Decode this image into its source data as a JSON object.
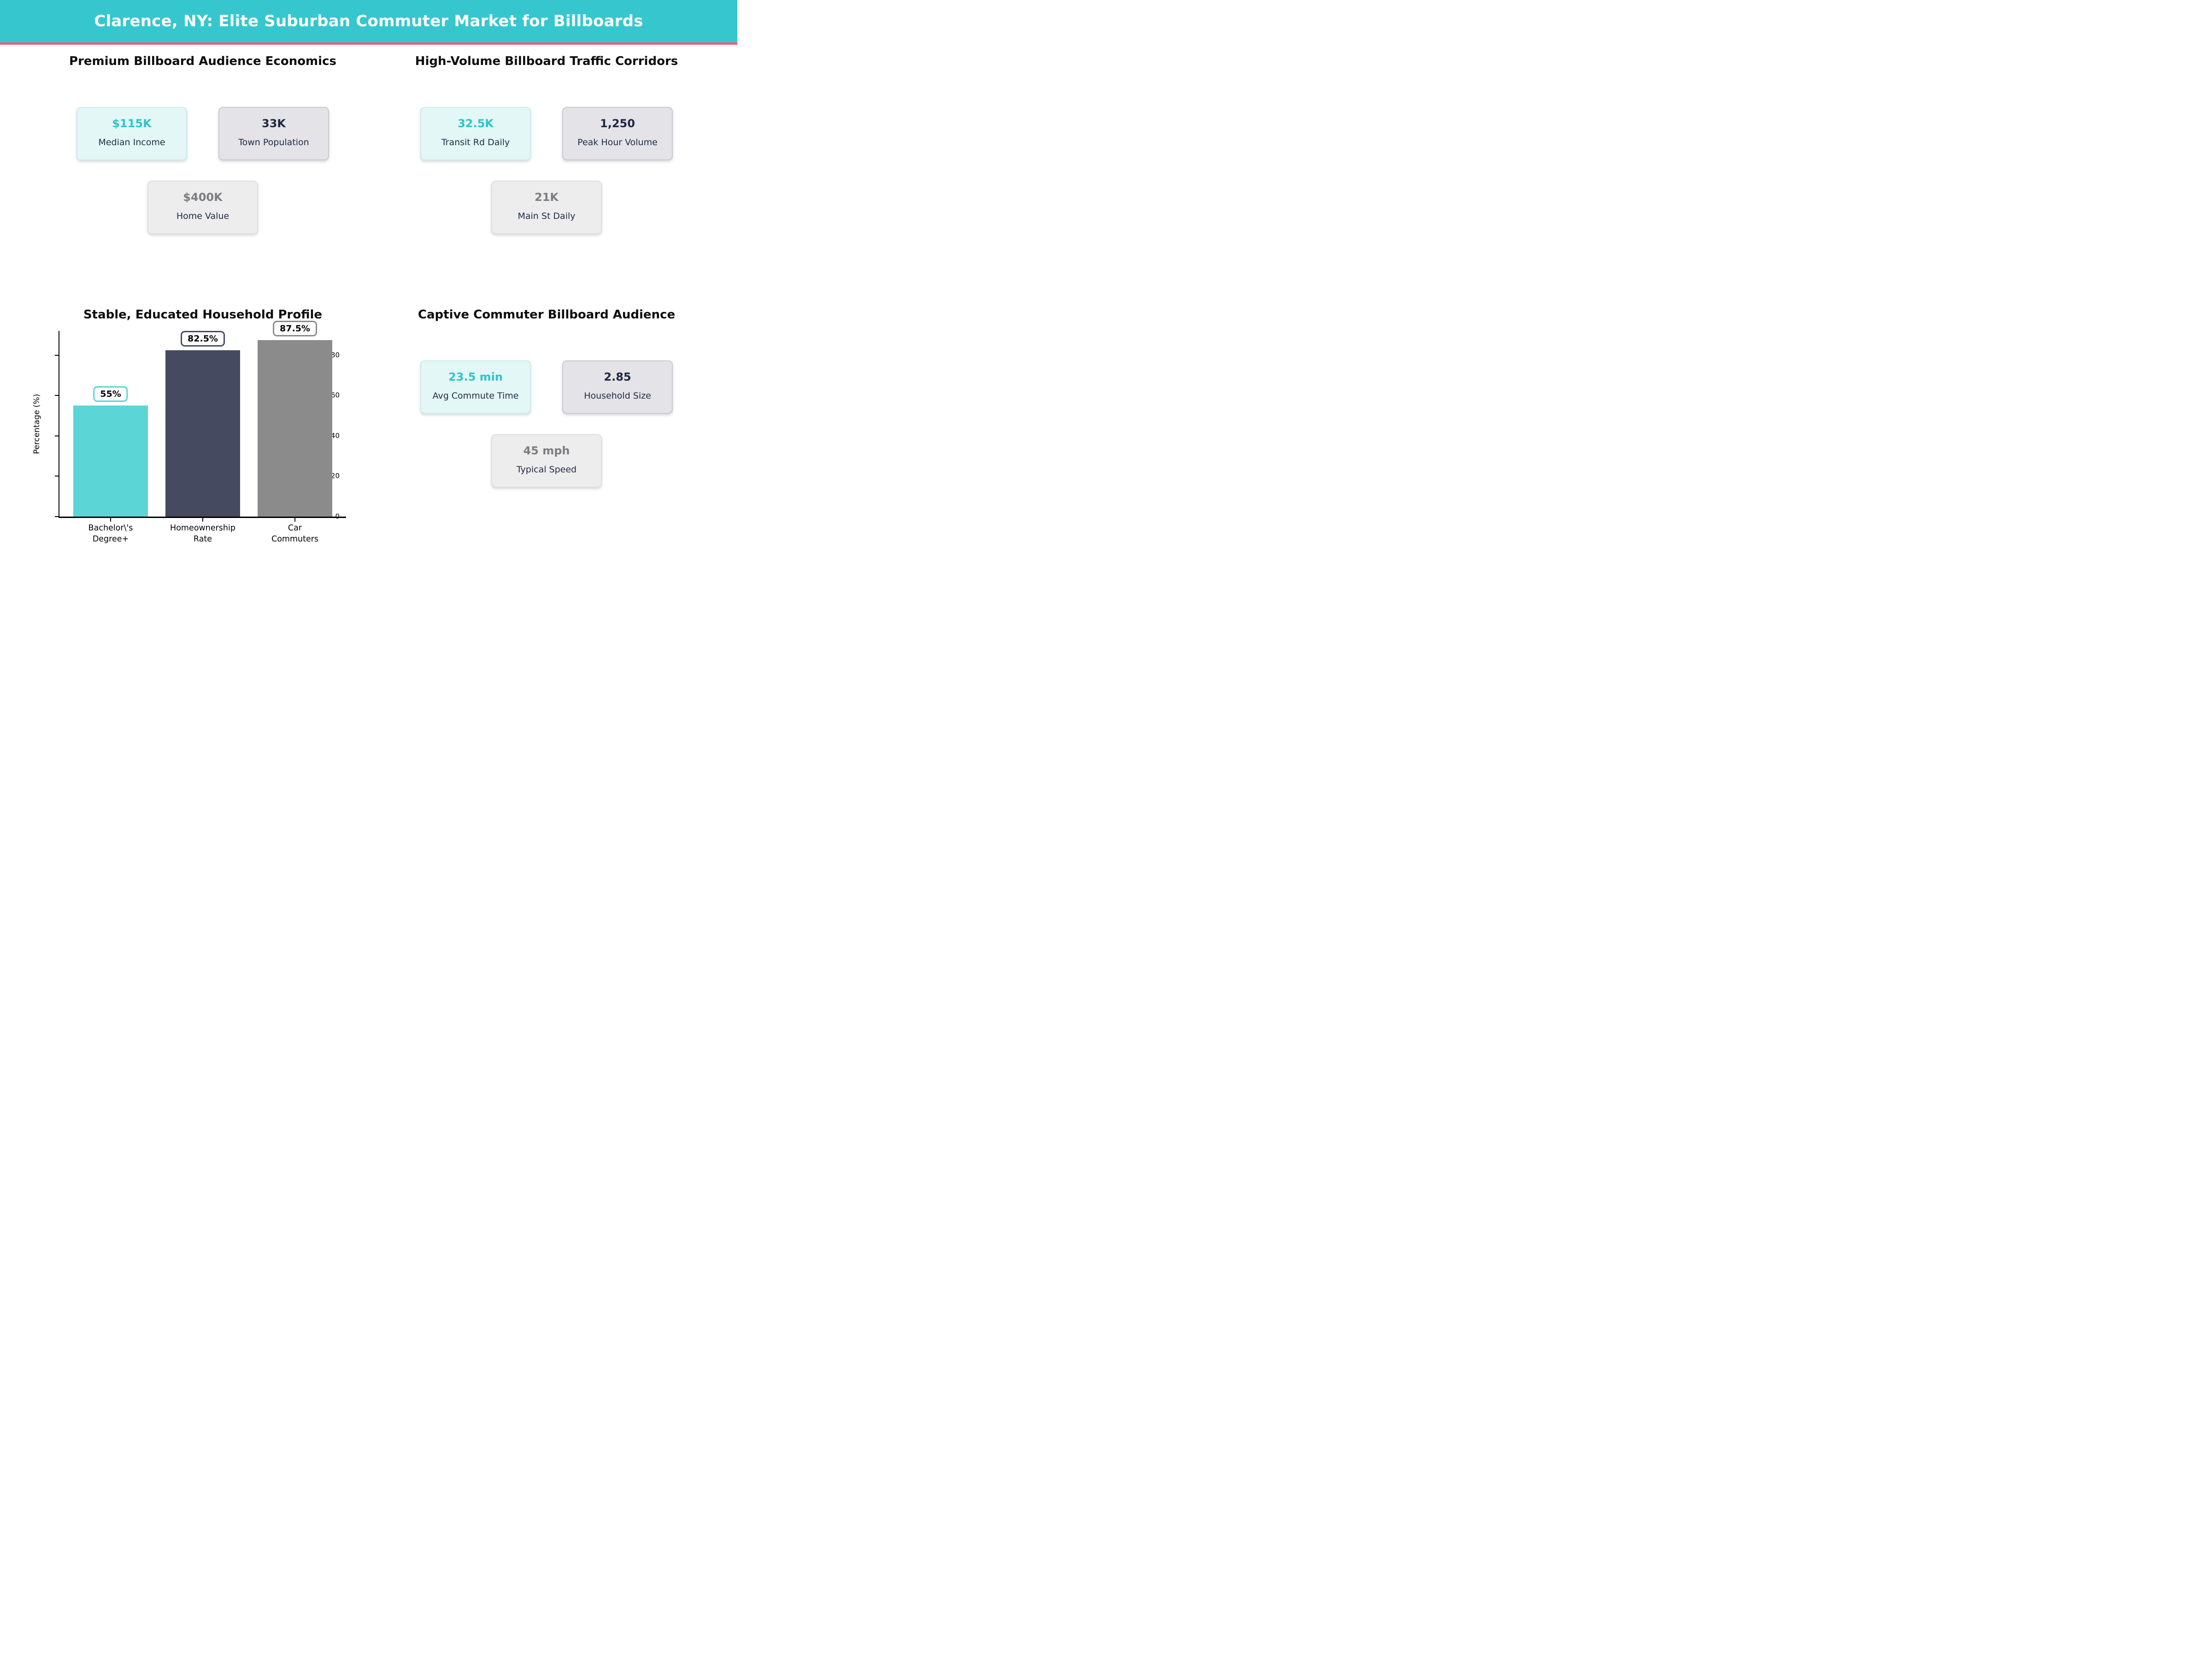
{
  "header": {
    "title": "Clarence, NY: Elite Suburban Commuter Market for Billboards",
    "bg_color": "#35c7cd",
    "accent_line_color": "#f05c78"
  },
  "quadrants": {
    "economics": {
      "title": "Premium Billboard Audience Economics",
      "cards": [
        {
          "value": "$115K",
          "label": "Median Income"
        },
        {
          "value": "33K",
          "label": "Town Population"
        },
        {
          "value": "$400K",
          "label": "Home Value"
        }
      ]
    },
    "traffic": {
      "title": "High-Volume Billboard Traffic Corridors",
      "cards": [
        {
          "value": "32.5K",
          "label": "Transit Rd Daily"
        },
        {
          "value": "1,250",
          "label": "Peak Hour Volume"
        },
        {
          "value": "21K",
          "label": "Main St Daily"
        }
      ]
    },
    "commuter": {
      "title": "Captive Commuter Billboard Audience",
      "cards": [
        {
          "value": "23.5 min",
          "label": "Avg Commute Time"
        },
        {
          "value": "2.85",
          "label": "Household Size"
        },
        {
          "value": "45 mph",
          "label": "Typical Speed"
        }
      ]
    }
  },
  "chart_data": {
    "type": "bar",
    "title": "Stable, Educated Household Profile",
    "categories": [
      "Bachelor\\'s\nDegree+",
      "Homeownership\nRate",
      "Car\nCommuters"
    ],
    "values": [
      55,
      82.5,
      87.5
    ],
    "value_labels": [
      "55%",
      "82.5%",
      "87.5%"
    ],
    "colors": [
      "#5bd5d5",
      "#454a60",
      "#8b8b8b"
    ],
    "xlabel": "",
    "ylabel": "Percentage (%)",
    "yticks": [
      0,
      20,
      40,
      60,
      80
    ],
    "ylim": [
      0,
      92
    ],
    "grid": false,
    "legend": false
  }
}
